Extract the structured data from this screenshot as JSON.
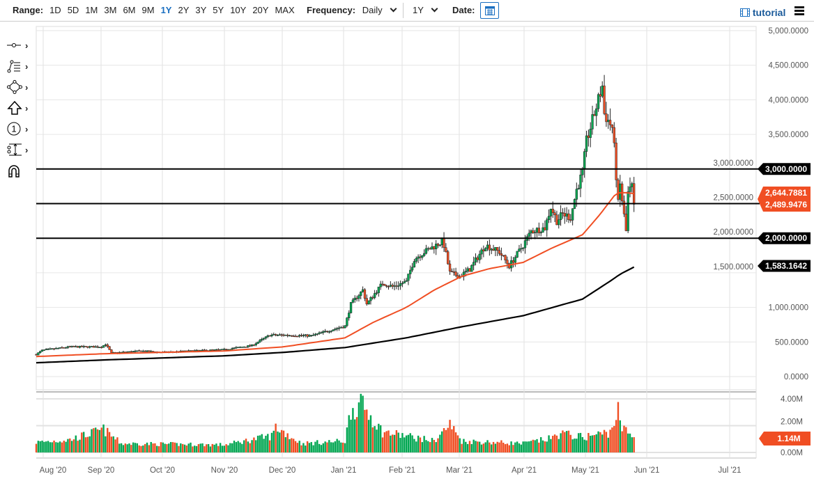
{
  "toolbar": {
    "range_label": "Range:",
    "ranges": [
      "1D",
      "5D",
      "1M",
      "3M",
      "6M",
      "9M",
      "1Y",
      "2Y",
      "3Y",
      "5Y",
      "10Y",
      "20Y",
      "MAX"
    ],
    "active_range": "1Y",
    "frequency_label": "Frequency:",
    "frequency_value": "Daily",
    "period_value": "1Y",
    "date_label": "Date:",
    "tutorial_label": "tutorial"
  },
  "tools": [
    "line-tool-icon",
    "fibonacci-tool-icon",
    "shape-tool-icon",
    "arrow-tool-icon",
    "annotation-number-icon",
    "measure-tool-icon",
    "magnet-icon"
  ],
  "colors": {
    "up": "#00a651",
    "down": "#f04e23",
    "ma50": "#f04e23",
    "ma200": "#000000",
    "tag_black": "#000000",
    "tag_red": "#f04e23"
  },
  "chart_data": {
    "type": "candlestick",
    "y_ticks": [
      "5,000.0000",
      "4,500.0000",
      "4,000.0000",
      "3,500.0000",
      "3,000.0000",
      "2,500.0000",
      "2,000.0000",
      "1,500.0000",
      "1,000.0000",
      "500.0000",
      "0.0000"
    ],
    "ylim": [
      0,
      5000
    ],
    "x_ticks": [
      "Aug '20",
      "Sep '20",
      "Oct '20",
      "Nov '20",
      "Dec '20",
      "Jan '21",
      "Feb '21",
      "Mar '21",
      "Apr '21",
      "May '21",
      "Jun '21",
      "Jul '21"
    ],
    "grid": true,
    "close_keypoints": [
      [
        "2020-07-29",
        320
      ],
      [
        "2020-08-01",
        380
      ],
      [
        "2020-08-15",
        430
      ],
      [
        "2020-08-31",
        430
      ],
      [
        "2020-09-02",
        470
      ],
      [
        "2020-09-05",
        340
      ],
      [
        "2020-09-20",
        370
      ],
      [
        "2020-10-01",
        350
      ],
      [
        "2020-10-15",
        370
      ],
      [
        "2020-11-01",
        390
      ],
      [
        "2020-11-15",
        450
      ],
      [
        "2020-11-24",
        600
      ],
      [
        "2020-12-01",
        600
      ],
      [
        "2020-12-15",
        590
      ],
      [
        "2020-12-27",
        690
      ],
      [
        "2021-01-01",
        730
      ],
      [
        "2021-01-04",
        1050
      ],
      [
        "2021-01-10",
        1250
      ],
      [
        "2021-01-12",
        1050
      ],
      [
        "2021-01-20",
        1350
      ],
      [
        "2021-01-25",
        1300
      ],
      [
        "2021-02-01",
        1370
      ],
      [
        "2021-02-05",
        1700
      ],
      [
        "2021-02-10",
        1800
      ],
      [
        "2021-02-19",
        1950
      ],
      [
        "2021-02-20",
        1900
      ],
      [
        "2021-02-23",
        1500
      ],
      [
        "2021-02-28",
        1450
      ],
      [
        "2021-03-05",
        1550
      ],
      [
        "2021-03-13",
        1900
      ],
      [
        "2021-03-20",
        1800
      ],
      [
        "2021-03-25",
        1600
      ],
      [
        "2021-04-01",
        1900
      ],
      [
        "2021-04-05",
        2100
      ],
      [
        "2021-04-12",
        2150
      ],
      [
        "2021-04-15",
        2450
      ],
      [
        "2021-04-18",
        2250
      ],
      [
        "2021-04-21",
        2350
      ],
      [
        "2021-04-25",
        2300
      ],
      [
        "2021-04-28",
        2700
      ],
      [
        "2021-05-01",
        2950
      ],
      [
        "2021-05-03",
        3400
      ],
      [
        "2021-05-08",
        3900
      ],
      [
        "2021-05-11",
        4200
      ],
      [
        "2021-05-12",
        3800
      ],
      [
        "2021-05-16",
        3600
      ],
      [
        "2021-05-17",
        3300
      ],
      [
        "2021-05-19",
        2500
      ],
      [
        "2021-05-20",
        2770
      ],
      [
        "2021-05-23",
        2100
      ],
      [
        "2021-05-24",
        2650
      ],
      [
        "2021-05-26",
        2750
      ],
      [
        "2021-05-27",
        2490
      ]
    ],
    "ma50": {
      "name": "",
      "points": [
        [
          "2020-07-29",
          290
        ],
        [
          "2020-09-01",
          330
        ],
        [
          "2020-10-01",
          350
        ],
        [
          "2020-11-01",
          370
        ],
        [
          "2020-12-01",
          430
        ],
        [
          "2021-01-01",
          560
        ],
        [
          "2021-01-15",
          780
        ],
        [
          "2021-02-01",
          1000
        ],
        [
          "2021-02-15",
          1250
        ],
        [
          "2021-03-01",
          1450
        ],
        [
          "2021-03-15",
          1560
        ],
        [
          "2021-04-01",
          1650
        ],
        [
          "2021-04-15",
          1850
        ],
        [
          "2021-05-01",
          2050
        ],
        [
          "2021-05-10",
          2350
        ],
        [
          "2021-05-18",
          2650
        ],
        [
          "2021-05-22",
          2660
        ],
        [
          "2021-05-27",
          2644.7881
        ]
      ]
    },
    "ma200": {
      "name": "",
      "points": [
        [
          "2020-07-29",
          200
        ],
        [
          "2020-09-01",
          240
        ],
        [
          "2020-10-01",
          270
        ],
        [
          "2020-11-01",
          300
        ],
        [
          "2020-12-01",
          350
        ],
        [
          "2021-01-01",
          420
        ],
        [
          "2021-02-01",
          560
        ],
        [
          "2021-03-01",
          720
        ],
        [
          "2021-04-01",
          880
        ],
        [
          "2021-05-01",
          1120
        ],
        [
          "2021-05-15",
          1380
        ],
        [
          "2021-05-20",
          1480
        ],
        [
          "2021-05-27",
          1583.1642
        ]
      ]
    },
    "horizontal_lines": [
      3000,
      2500,
      2000
    ],
    "price_tags": [
      {
        "text": "3,000.0000",
        "value": 3000,
        "color": "black"
      },
      {
        "text": "2,644.7881",
        "value": 2644.7881,
        "color": "red"
      },
      {
        "text": "2,489.9476",
        "value": 2489.9476,
        "color": "red"
      },
      {
        "text": "2,000.0000",
        "value": 2000,
        "color": "black"
      },
      {
        "text": "1,583.1642",
        "value": 1583.1642,
        "color": "black"
      }
    ],
    "volume": {
      "y_ticks": [
        "4.00M",
        "2.00M",
        "0.00M"
      ],
      "ylim": [
        0,
        4000000
      ],
      "last_label": "1.14M",
      "keypoints": [
        [
          "2020-07-29",
          0.8
        ],
        [
          "2020-08-15",
          1.0
        ],
        [
          "2020-09-01",
          1.8
        ],
        [
          "2020-09-10",
          0.7
        ],
        [
          "2020-11-01",
          0.6
        ],
        [
          "2020-11-25",
          1.3
        ],
        [
          "2020-11-27",
          2.0
        ],
        [
          "2020-12-10",
          0.7
        ],
        [
          "2021-01-01",
          0.9
        ],
        [
          "2021-01-04",
          3.4
        ],
        [
          "2021-01-10",
          3.7
        ],
        [
          "2021-01-20",
          1.6
        ],
        [
          "2021-02-01",
          1.3
        ],
        [
          "2021-02-15",
          0.9
        ],
        [
          "2021-02-23",
          2.2
        ],
        [
          "2021-03-01",
          0.9
        ],
        [
          "2021-04-01",
          0.7
        ],
        [
          "2021-04-15",
          1.1
        ],
        [
          "2021-04-20",
          1.5
        ],
        [
          "2021-05-01",
          1.2
        ],
        [
          "2021-05-15",
          1.6
        ],
        [
          "2021-05-19",
          3.3
        ],
        [
          "2021-05-20",
          2.1
        ],
        [
          "2021-05-27",
          1.14
        ]
      ]
    }
  }
}
